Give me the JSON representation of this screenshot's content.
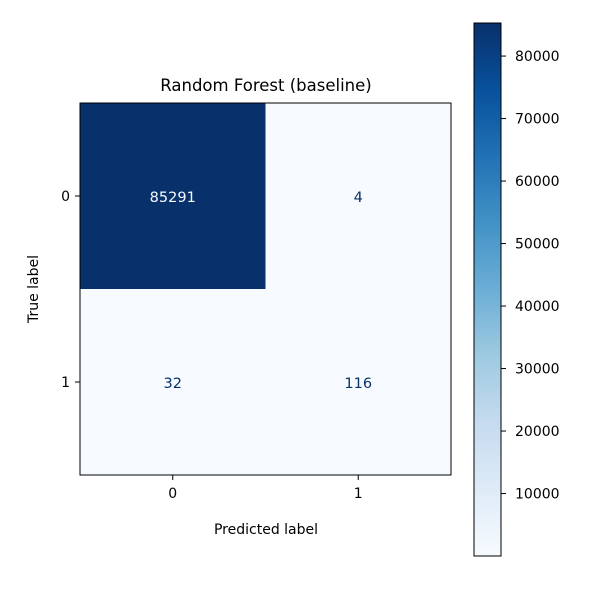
{
  "chart_data": {
    "type": "heatmap",
    "title": "Random Forest (baseline)",
    "xlabel": "Predicted label",
    "ylabel": "True label",
    "x_categories": [
      "0",
      "1"
    ],
    "y_categories": [
      "0",
      "1"
    ],
    "values": [
      [
        85291,
        4
      ],
      [
        32,
        116
      ]
    ],
    "cell_labels": [
      [
        "85291",
        "4"
      ],
      [
        "32",
        "116"
      ]
    ],
    "colormap": "Blues",
    "colormap_stops": [
      "#f7fbff",
      "#deebf7",
      "#c6dbef",
      "#9ecae1",
      "#6baed6",
      "#4292c6",
      "#2171b5",
      "#08519c",
      "#08306b"
    ],
    "text_dark_color": "#08306b",
    "text_light_color": "#f7fbff",
    "colorbar": {
      "min": 4,
      "max": 85291,
      "ticks": [
        10000,
        20000,
        30000,
        40000,
        50000,
        60000,
        70000,
        80000
      ],
      "tick_labels": [
        "10000",
        "20000",
        "30000",
        "40000",
        "50000",
        "60000",
        "70000",
        "80000"
      ]
    },
    "grid": false,
    "legend": "none"
  }
}
